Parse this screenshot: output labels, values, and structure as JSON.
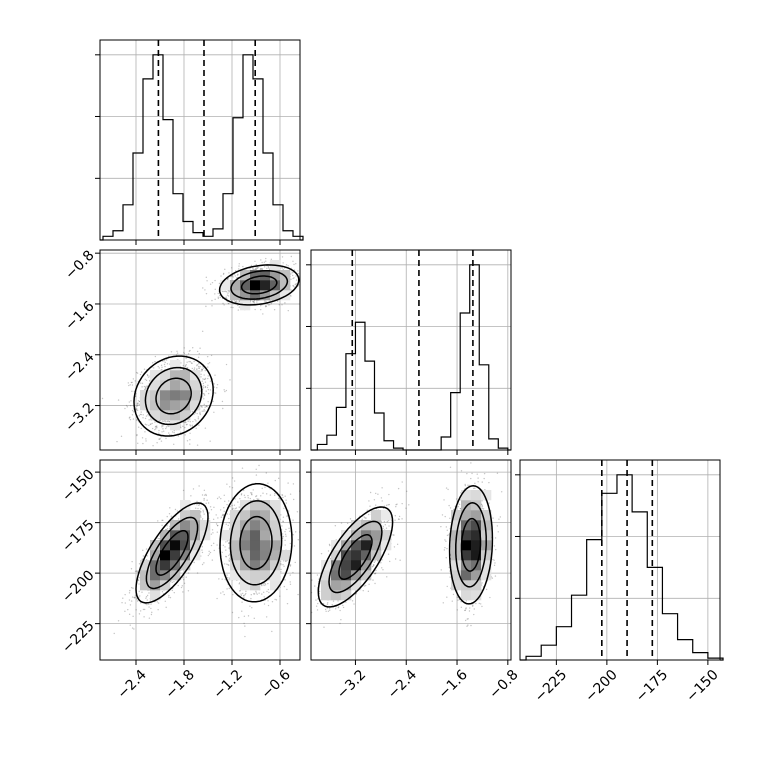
{
  "chart_data": [
    {
      "type": "histogram",
      "variable": "param_1",
      "xlim": [
        -2.85,
        -0.35
      ],
      "bins": [
        -2.75,
        -2.625,
        -2.5,
        -2.375,
        -2.25,
        -2.125,
        -2.0,
        -1.875,
        -1.75,
        -1.625,
        -1.5,
        -1.375,
        -1.25,
        -1.125,
        -1.0,
        -0.875,
        -0.75,
        -0.625,
        -0.5,
        -0.375
      ],
      "counts": [
        0.02,
        0.05,
        0.19,
        0.47,
        0.87,
        1.0,
        0.65,
        0.25,
        0.1,
        0.04,
        0.02,
        0.06,
        0.25,
        0.66,
        1.0,
        0.87,
        0.47,
        0.19,
        0.05,
        0.02
      ],
      "quantiles": [
        -2.12,
        -1.55,
        -0.91
      ],
      "xticks": [
        -2.4,
        -1.8,
        -1.2,
        -0.6
      ],
      "xticklabels": [
        "−2.4",
        "−1.8",
        "−1.2",
        "−0.6"
      ],
      "grid": true
    },
    {
      "type": "histogram",
      "variable": "param_2",
      "xlim": [
        -3.9,
        -0.75
      ],
      "bins": [
        -3.725,
        -3.575,
        -3.425,
        -3.275,
        -3.125,
        -2.975,
        -2.825,
        -2.675,
        -2.525,
        -2.375,
        -2.225,
        -2.075,
        -1.925,
        -1.775,
        -1.625,
        -1.475,
        -1.325,
        -1.175,
        -1.025,
        -0.875
      ],
      "counts": [
        0.03,
        0.08,
        0.23,
        0.52,
        0.69,
        0.48,
        0.2,
        0.05,
        0.01,
        0.0,
        0.0,
        0.0,
        0.0,
        0.07,
        0.31,
        0.74,
        1.0,
        0.46,
        0.06,
        0.01
      ],
      "quantiles": [
        -3.25,
        -2.2,
        -1.35
      ],
      "xticks": [
        -3.2,
        -2.4,
        -1.6,
        -0.8
      ],
      "xticklabels": [
        "−3.2",
        "−2.4",
        "−1.6",
        "−0.8"
      ],
      "grid": true
    },
    {
      "type": "histogram",
      "variable": "param_3",
      "xlim": [
        -243,
        -144
      ],
      "bins": [
        -236.25,
        -228.75,
        -221.25,
        -213.75,
        -206.25,
        -198.75,
        -191.25,
        -183.75,
        -176.25,
        -168.75,
        -161.25,
        -153.75,
        -146.25
      ],
      "counts": [
        0.02,
        0.08,
        0.18,
        0.35,
        0.65,
        0.9,
        1.0,
        0.8,
        0.5,
        0.25,
        0.11,
        0.04,
        0.01
      ],
      "quantiles": [
        -202.5,
        -190,
        -177.5
      ],
      "xticks": [
        -225,
        -200,
        -175,
        -150
      ],
      "xticklabels": [
        "−225",
        "−200",
        "−175",
        "−150"
      ],
      "grid": true
    },
    {
      "type": "scatter",
      "x_variable": "param_1",
      "y_variable": "param_2",
      "xlim": [
        -2.85,
        -0.35
      ],
      "ylim": [
        -3.9,
        -0.75
      ],
      "clusters": [
        {
          "mean": [
            -1.93,
            -3.05
          ],
          "sd": [
            0.22,
            0.28
          ],
          "rho": 0.15
        },
        {
          "mean": [
            -0.86,
            -1.3
          ],
          "sd": [
            0.22,
            0.14
          ],
          "rho": 0.25
        }
      ],
      "yticks": [
        -3.2,
        -2.4,
        -1.6,
        -0.8
      ],
      "yticklabels": [
        "−3.2",
        "−2.4",
        "−1.6",
        "−0.8"
      ],
      "grid": true
    },
    {
      "type": "scatter",
      "x_variable": "param_1",
      "y_variable": "param_3",
      "xlim": [
        -2.85,
        -0.35
      ],
      "ylim": [
        -243,
        -144
      ],
      "clusters": [
        {
          "mean": [
            -1.95,
            -190
          ],
          "sd": [
            0.2,
            11
          ],
          "rho": 0.72
        },
        {
          "mean": [
            -0.9,
            -185
          ],
          "sd": [
            0.2,
            13
          ],
          "rho": 0.05
        }
      ],
      "yticks": [
        -225,
        -200,
        -175,
        -150
      ],
      "yticklabels": [
        "−225",
        "−200",
        "−175",
        "−150"
      ],
      "grid": true
    },
    {
      "type": "scatter",
      "x_variable": "param_2",
      "y_variable": "param_3",
      "xlim": [
        -3.9,
        -0.75
      ],
      "ylim": [
        -243,
        -144
      ],
      "clusters": [
        {
          "mean": [
            -3.2,
            -192
          ],
          "sd": [
            0.26,
            11
          ],
          "rho": 0.7
        },
        {
          "mean": [
            -1.38,
            -186
          ],
          "sd": [
            0.15,
            13
          ],
          "rho": 0.1
        }
      ],
      "grid": true
    }
  ]
}
